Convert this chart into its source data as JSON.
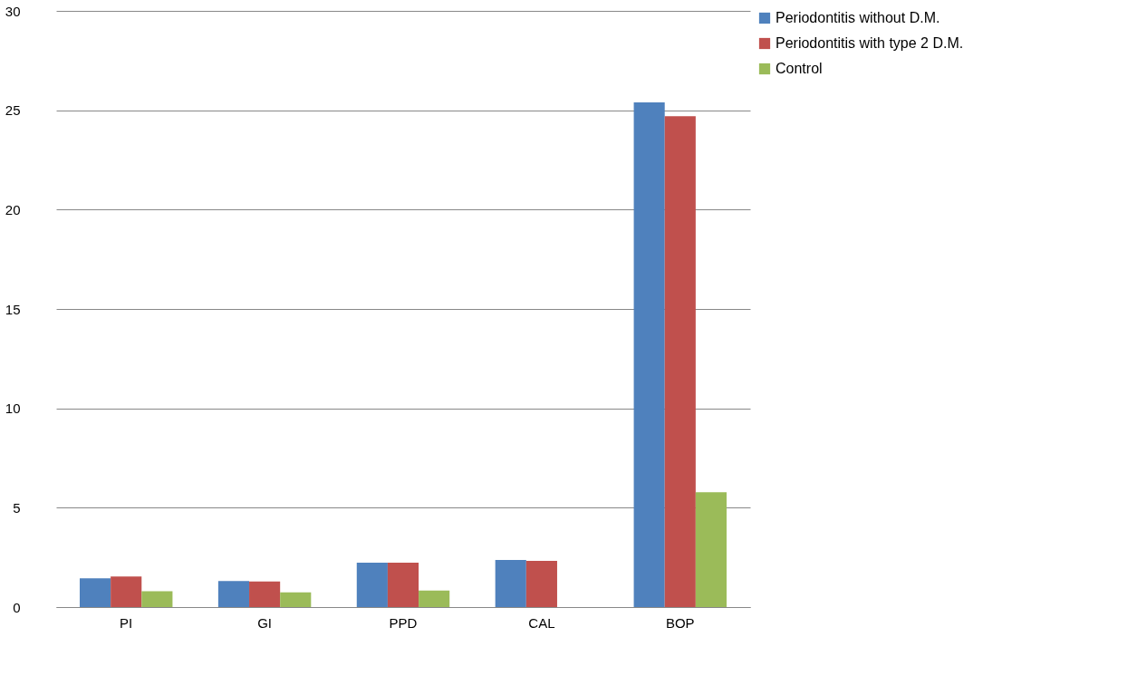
{
  "chart_data": {
    "type": "bar",
    "categories": [
      "PI",
      "GI",
      "PPD",
      "CAL",
      "BOP"
    ],
    "series": [
      {
        "name": "Periodontitis without D.M.",
        "color": "#4f81bd",
        "values": [
          1.45,
          1.31,
          2.23,
          2.37,
          25.4
        ]
      },
      {
        "name": "Periodontitis with type 2 D.M.",
        "color": "#c0504d",
        "values": [
          1.54,
          1.29,
          2.23,
          2.32,
          24.7
        ]
      },
      {
        "name": "Control",
        "color": "#9bbb59",
        "values": [
          0.8,
          0.74,
          0.83,
          null,
          5.78
        ]
      }
    ],
    "ylim": [
      0,
      30
    ],
    "yticks": [
      0,
      5,
      10,
      15,
      20,
      25,
      30
    ],
    "grid": "y",
    "legend": "right"
  }
}
